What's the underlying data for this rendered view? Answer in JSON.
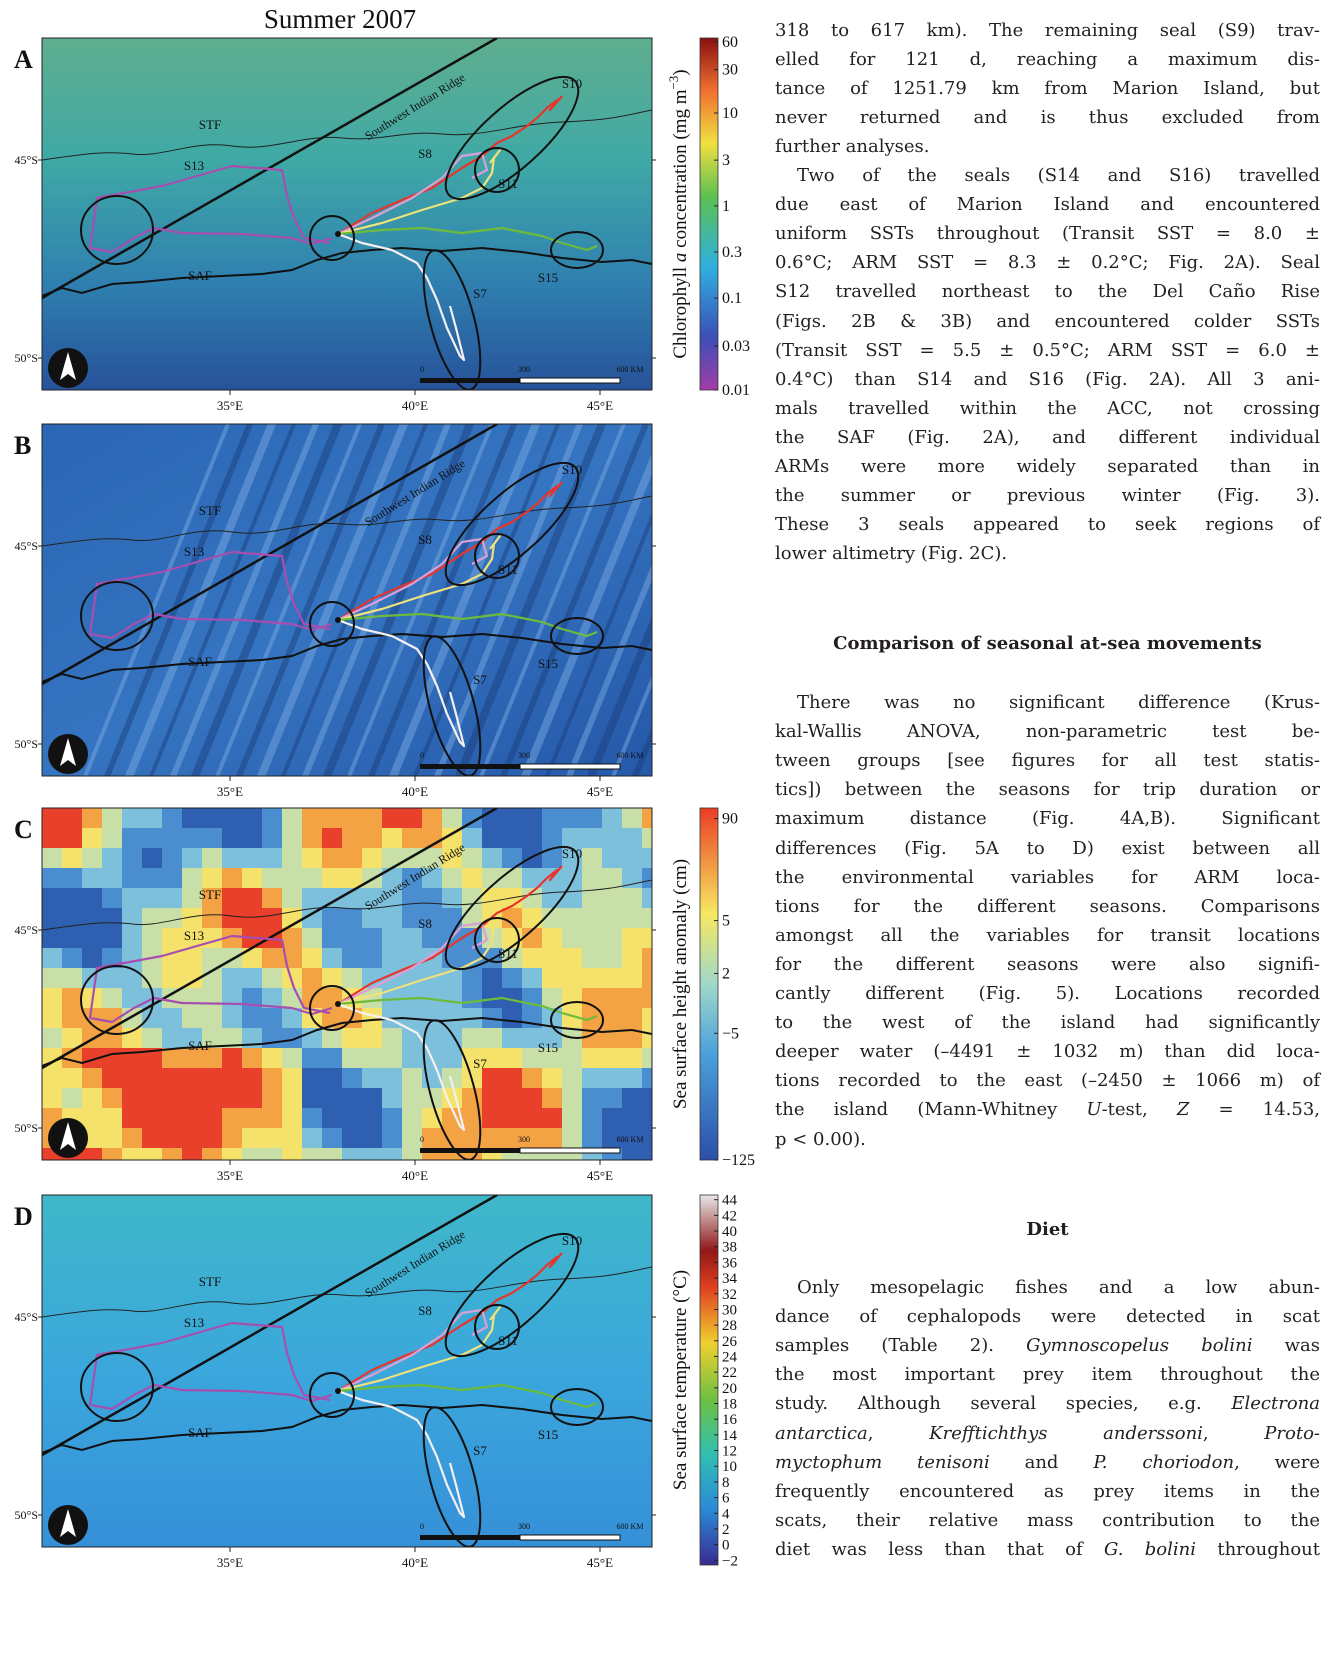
{
  "figure": {
    "title": "Summer 2007",
    "panels": [
      {
        "letter": "A"
      },
      {
        "letter": "B"
      },
      {
        "letter": "C"
      },
      {
        "letter": "D"
      }
    ],
    "map_labels": [
      "S10",
      "Southwest Indian Ridge",
      "STF",
      "S13",
      "S8",
      "S11",
      "SAF",
      "S15",
      "S7"
    ],
    "lat_labels": [
      "45°S",
      "50°S"
    ],
    "lon_labels": [
      "35°E",
      "40°E",
      "45°E"
    ],
    "scale_labels": [
      "0",
      "300",
      "600 KM"
    ],
    "colorbars": [
      {
        "title": [
          "Chlorophyll ",
          {
            "i": "a"
          },
          " concentration (mg m",
          {
            "sup": "−3"
          },
          ")"
        ],
        "ticks": [
          "60",
          "30",
          "10",
          "3",
          "1",
          "0.3",
          "0.1",
          "0.03",
          "0.01"
        ]
      },
      {
        "title": [
          "Sea surface height anomaly (cm)"
        ],
        "ticks": [
          "90",
          "5",
          "2",
          "−5",
          "−125"
        ]
      },
      {
        "title": [
          "Sea surface temperature (°C)"
        ],
        "ticks": [
          "44",
          "42",
          "40",
          "38",
          "36",
          "34",
          "32",
          "30",
          "28",
          "26",
          "24",
          "22",
          "20",
          "18",
          "16",
          "14",
          "12",
          "10",
          "8",
          "6",
          "4",
          "2",
          "0",
          "−2"
        ]
      }
    ]
  },
  "text": {
    "blocks": [
      {
        "lines": [
          [
            "318 to 617 km). The remaining seal (S9) trav-"
          ],
          [
            "elled for 121 d, reaching a maximum dis-"
          ],
          [
            "tance of 1251.79 km from Marion Island, but"
          ],
          [
            "never returned and is thus excluded from"
          ],
          [
            "further analyses."
          ]
        ]
      },
      {
        "lines": [
          [
            "Two of the seals (S14 and S16) travelled"
          ],
          [
            "due east of Marion Island and encountered"
          ],
          [
            "uniform SSTs throughout (Transit SST = 8.0 ±"
          ],
          [
            "0.6°C; ARM SST = 8.3 ± 0.2°C; Fig. 2A). Seal"
          ],
          [
            "S12 travelled northeast to the Del Caño Rise"
          ],
          [
            "(Figs. 2B & 3B) and encountered colder SSTs"
          ],
          [
            "(Transit SST = 5.5 ± 0.5°C; ARM SST = 6.0 ±"
          ],
          [
            "0.4°C) than S14 and S16 (Fig. 2A). All 3 ani-"
          ],
          [
            "mals travelled within the ACC, not crossing"
          ],
          [
            "the SAF (Fig. 2A), and different individual"
          ],
          [
            "ARMs were more widely separated than in"
          ],
          [
            "the summer or previous winter (Fig. 3)."
          ],
          [
            "These 3 seals appeared to seek regions of"
          ],
          [
            "lower altimetry (Fig. 2C)."
          ]
        ]
      },
      {
        "heading": "Comparison of seasonal at-sea movements"
      },
      {
        "lines": [
          [
            "There was no significant difference (Krus-"
          ],
          [
            "kal-Wallis ANOVA, non-parametric test be-"
          ],
          [
            "tween groups [see figures for all test statis-"
          ],
          [
            "tics]) between the seasons for trip duration or"
          ],
          [
            "maximum distance (Fig. 4A,B). Significant"
          ],
          [
            "differences (Fig. 5A to D) exist between all"
          ],
          [
            "the environmental variables for ARM loca-"
          ],
          [
            "tions for the different seasons. Comparisons"
          ],
          [
            "amongst all the variables for transit locations"
          ],
          [
            "for the different seasons were also signifi-"
          ],
          [
            "cantly different (Fig. 5). Locations recorded"
          ],
          [
            "to the west of the island had significantly"
          ],
          [
            "deeper water (–4491 ± 1032 m) than did loca-"
          ],
          [
            "tions recorded to the east (–2450 ± 1066 m) of"
          ],
          [
            "the island (Mann-Whitney ",
            {
              "i": "U"
            },
            "-test, ",
            {
              "i": "Z"
            },
            " = 14.53,"
          ],
          [
            "p < 0.00)."
          ]
        ]
      },
      {
        "heading": "Diet"
      },
      {
        "lines": [
          [
            "Only mesopelagic fishes and a low abun-"
          ],
          [
            "dance of cephalopods were detected in scat"
          ],
          [
            "samples (Table 2). ",
            {
              "i": "Gymnoscopelus bolini"
            },
            " was"
          ],
          [
            "the most important prey item throughout the"
          ],
          [
            "study. Although several species, e.g. ",
            {
              "i": "Electrona"
            }
          ],
          [
            {
              "i": "antarctica"
            },
            ", ",
            {
              "i": "Krefftichthys anderssoni"
            },
            ", ",
            {
              "i": "Proto-"
            }
          ],
          [
            {
              "i": "myctophum tenisoni"
            },
            " and ",
            {
              "i": "P. choriodon"
            },
            ", were"
          ],
          [
            "frequently encountered as prey items in the"
          ],
          [
            "scats, their relative mass contribution to the"
          ],
          [
            "diet was less than that of ",
            {
              "i": "G. bolini"
            },
            " throughout"
          ]
        ]
      }
    ]
  }
}
